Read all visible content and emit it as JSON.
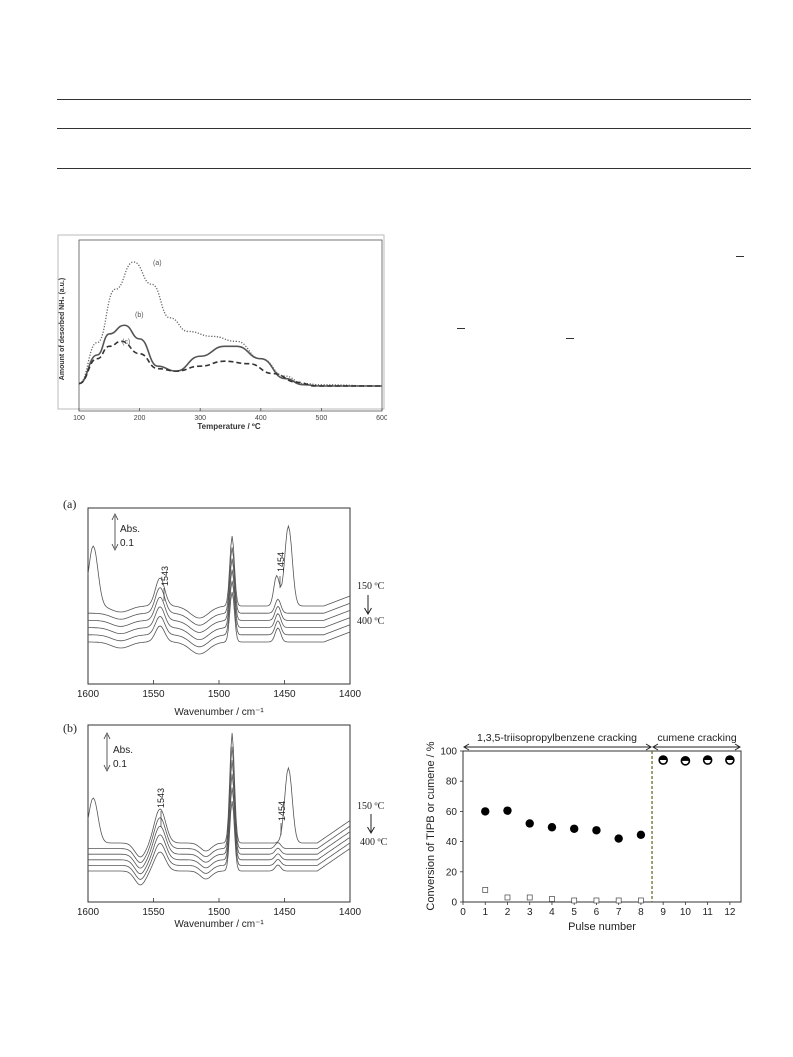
{
  "tpd": {
    "ylabel": "Amount of desorbed NH₃ (a.u.)",
    "xlabel": "Temperature / ºC",
    "x_ticks": [
      "100",
      "200",
      "300",
      "400",
      "500",
      "600"
    ],
    "labels": {
      "a": "(a)",
      "b": "(b)",
      "c": "(c)"
    }
  },
  "ir_a": {
    "panel_label": "(a)",
    "abs_label": "Abs.",
    "abs_value": "0.1",
    "peak1": "1543",
    "peak2": "1454",
    "temp_top": "150 ºC",
    "temp_bottom": "400 ºC",
    "xlabel": "Wavenumber / cm⁻¹",
    "x_ticks": [
      "1600",
      "1550",
      "1500",
      "1450",
      "1400"
    ]
  },
  "ir_b": {
    "panel_label": "(b)",
    "abs_label": "Abs.",
    "abs_value": "0.1",
    "peak1": "1543",
    "peak2": "1454",
    "temp_top": "150 ºC",
    "temp_bottom": "400 ºC",
    "xlabel": "Wavenumber / cm⁻¹",
    "x_ticks": [
      "1600",
      "1550",
      "1500",
      "1450",
      "1400"
    ]
  },
  "conv": {
    "ylabel": "Conversion of TIPB or cumene / %",
    "xlabel": "Pulse number",
    "region1": "1,3,5-triisopropylbenzene cracking",
    "region2": "cumene cracking",
    "x_ticks": [
      "0",
      "1",
      "2",
      "3",
      "4",
      "5",
      "6",
      "7",
      "8",
      "9",
      "10",
      "11",
      "12"
    ],
    "y_ticks": [
      "0",
      "20",
      "40",
      "60",
      "80",
      "100"
    ]
  },
  "chart_data": [
    {
      "type": "line",
      "xlabel": "Temperature / ºC",
      "ylabel": "Amount of desorbed NH₃ (a.u.)",
      "xlim": [
        100,
        600
      ],
      "series": [
        {
          "name": "(a)",
          "x": [
            100,
            130,
            160,
            190,
            220,
            250,
            280,
            320,
            360,
            400,
            440,
            470,
            500,
            600
          ],
          "values": [
            0.02,
            0.35,
            0.78,
            1.0,
            0.82,
            0.55,
            0.44,
            0.4,
            0.36,
            0.22,
            0.08,
            0.02,
            0.01,
            0.0
          ]
        },
        {
          "name": "(b)",
          "x": [
            100,
            130,
            150,
            175,
            200,
            230,
            260,
            300,
            340,
            360,
            400,
            440,
            470,
            500,
            600
          ],
          "values": [
            0.02,
            0.25,
            0.42,
            0.49,
            0.38,
            0.16,
            0.12,
            0.24,
            0.32,
            0.32,
            0.22,
            0.06,
            0.01,
            0.0,
            0.0
          ]
        },
        {
          "name": "(c)",
          "x": [
            100,
            130,
            150,
            170,
            200,
            230,
            260,
            300,
            340,
            380,
            420,
            460,
            490,
            600
          ],
          "values": [
            0.02,
            0.22,
            0.32,
            0.36,
            0.26,
            0.14,
            0.12,
            0.16,
            0.2,
            0.18,
            0.1,
            0.03,
            0.0,
            0.0
          ]
        }
      ]
    },
    {
      "type": "line",
      "xlabel": "Wavenumber / cm⁻¹",
      "xlim": [
        1600,
        1400
      ],
      "annotations": [
        "1543",
        "1454"
      ]
    },
    {
      "type": "line",
      "xlabel": "Wavenumber / cm⁻¹",
      "xlim": [
        1600,
        1400
      ],
      "annotations": [
        "1543",
        "1454"
      ]
    },
    {
      "type": "scatter",
      "xlabel": "Pulse number",
      "ylabel": "Conversion of TIPB or cumene / %",
      "xlim": [
        0,
        12.5
      ],
      "ylim": [
        0,
        100
      ],
      "series": [
        {
          "name": "filled",
          "x": [
            1,
            2,
            3,
            4,
            5,
            6,
            7,
            8
          ],
          "values": [
            60,
            60.5,
            52,
            49.5,
            48.5,
            47.5,
            42,
            44.5
          ]
        },
        {
          "name": "open-square",
          "x": [
            1,
            2,
            3,
            4,
            5,
            6,
            7,
            8
          ],
          "values": [
            8,
            3,
            3,
            2,
            1,
            1,
            1,
            1
          ]
        },
        {
          "name": "half-open",
          "x": [
            9,
            10,
            11,
            12
          ],
          "values": [
            94,
            93.5,
            94,
            94
          ]
        }
      ]
    }
  ]
}
